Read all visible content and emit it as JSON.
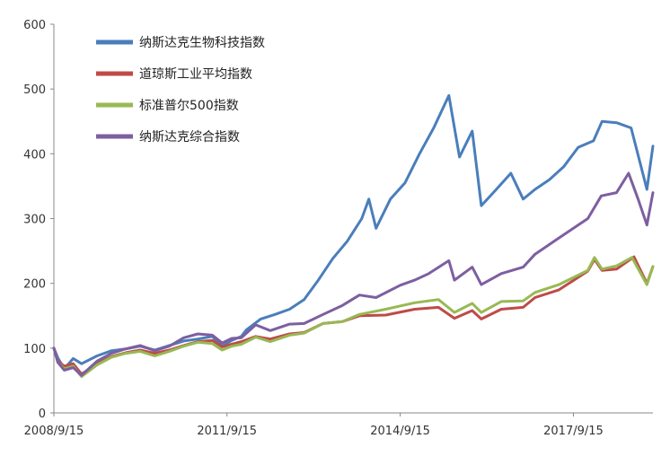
{
  "chart_data": {
    "type": "line",
    "title": "",
    "xlabel": "",
    "ylabel": "",
    "ylim": [
      0,
      600
    ],
    "yticks": [
      0,
      100,
      200,
      300,
      400,
      500,
      600
    ],
    "xlim": [
      "2008-09-15",
      "2019-01-31"
    ],
    "xtick_labels": [
      "2008/9/15",
      "2011/9/15",
      "2014/9/15",
      "2017/9/15"
    ],
    "grid": false,
    "legend_position": "top-left",
    "series": [
      {
        "name": "纳斯达克生物科技指数",
        "color": "#4a7ebb",
        "points": [
          [
            "2008-09-15",
            100
          ],
          [
            "2008-10-10",
            85
          ],
          [
            "2008-11-20",
            68
          ],
          [
            "2009-01-15",
            84
          ],
          [
            "2009-03-09",
            76
          ],
          [
            "2009-06-15",
            88
          ],
          [
            "2009-09-15",
            96
          ],
          [
            "2009-12-15",
            99
          ],
          [
            "2010-03-15",
            103
          ],
          [
            "2010-06-15",
            97
          ],
          [
            "2010-09-15",
            104
          ],
          [
            "2010-12-15",
            111
          ],
          [
            "2011-03-15",
            114
          ],
          [
            "2011-06-15",
            118
          ],
          [
            "2011-08-15",
            103
          ],
          [
            "2011-10-15",
            112
          ],
          [
            "2011-12-15",
            118
          ],
          [
            "2012-01-15",
            128
          ],
          [
            "2012-04-15",
            145
          ],
          [
            "2012-07-15",
            152
          ],
          [
            "2012-10-15",
            160
          ],
          [
            "2013-01-15",
            175
          ],
          [
            "2013-04-15",
            205
          ],
          [
            "2013-07-15",
            238
          ],
          [
            "2013-10-15",
            265
          ],
          [
            "2014-01-15",
            300
          ],
          [
            "2014-03-01",
            330
          ],
          [
            "2014-04-15",
            285
          ],
          [
            "2014-07-15",
            330
          ],
          [
            "2014-10-15",
            355
          ],
          [
            "2015-01-15",
            400
          ],
          [
            "2015-04-15",
            440
          ],
          [
            "2015-07-20",
            490
          ],
          [
            "2015-09-25",
            395
          ],
          [
            "2015-12-15",
            435
          ],
          [
            "2016-02-10",
            320
          ],
          [
            "2016-05-15",
            345
          ],
          [
            "2016-08-15",
            370
          ],
          [
            "2016-11-01",
            330
          ],
          [
            "2017-01-15",
            345
          ],
          [
            "2017-04-15",
            360
          ],
          [
            "2017-07-15",
            380
          ],
          [
            "2017-10-15",
            410
          ],
          [
            "2018-01-20",
            420
          ],
          [
            "2018-03-15",
            450
          ],
          [
            "2018-06-15",
            448
          ],
          [
            "2018-09-15",
            440
          ],
          [
            "2018-12-24",
            345
          ],
          [
            "2019-01-31",
            412
          ]
        ]
      },
      {
        "name": "道琼斯工业平均指数",
        "color": "#be4b48",
        "points": [
          [
            "2008-09-15",
            100
          ],
          [
            "2008-10-10",
            80
          ],
          [
            "2008-11-20",
            72
          ],
          [
            "2009-01-15",
            76
          ],
          [
            "2009-03-09",
            60
          ],
          [
            "2009-06-15",
            76
          ],
          [
            "2009-09-15",
            87
          ],
          [
            "2009-12-15",
            93
          ],
          [
            "2010-03-15",
            97
          ],
          [
            "2010-06-15",
            92
          ],
          [
            "2010-09-15",
            97
          ],
          [
            "2010-12-15",
            104
          ],
          [
            "2011-03-15",
            110
          ],
          [
            "2011-06-15",
            112
          ],
          [
            "2011-08-15",
            102
          ],
          [
            "2011-10-15",
            106
          ],
          [
            "2011-12-15",
            110
          ],
          [
            "2012-03-15",
            118
          ],
          [
            "2012-06-15",
            114
          ],
          [
            "2012-10-15",
            122
          ],
          [
            "2013-01-15",
            124
          ],
          [
            "2013-05-15",
            138
          ],
          [
            "2013-09-15",
            141
          ],
          [
            "2013-12-31",
            150
          ],
          [
            "2014-06-15",
            151
          ],
          [
            "2014-12-15",
            160
          ],
          [
            "2015-05-15",
            163
          ],
          [
            "2015-08-24",
            146
          ],
          [
            "2015-12-15",
            158
          ],
          [
            "2016-02-10",
            145
          ],
          [
            "2016-06-15",
            160
          ],
          [
            "2016-11-01",
            163
          ],
          [
            "2017-01-15",
            178
          ],
          [
            "2017-06-15",
            190
          ],
          [
            "2017-12-15",
            219
          ],
          [
            "2018-01-26",
            237
          ],
          [
            "2018-03-15",
            220
          ],
          [
            "2018-06-15",
            222
          ],
          [
            "2018-10-03",
            241
          ],
          [
            "2018-12-24",
            200
          ],
          [
            "2019-01-31",
            226
          ]
        ]
      },
      {
        "name": "标准普尔500指数",
        "color": "#98b954",
        "points": [
          [
            "2008-09-15",
            100
          ],
          [
            "2008-10-10",
            78
          ],
          [
            "2008-11-20",
            68
          ],
          [
            "2009-01-15",
            72
          ],
          [
            "2009-03-09",
            56
          ],
          [
            "2009-06-15",
            74
          ],
          [
            "2009-09-15",
            86
          ],
          [
            "2009-12-15",
            92
          ],
          [
            "2010-03-15",
            95
          ],
          [
            "2010-06-15",
            88
          ],
          [
            "2010-09-15",
            95
          ],
          [
            "2010-12-15",
            103
          ],
          [
            "2011-03-15",
            109
          ],
          [
            "2011-06-15",
            107
          ],
          [
            "2011-08-15",
            97
          ],
          [
            "2011-10-15",
            103
          ],
          [
            "2011-12-15",
            106
          ],
          [
            "2012-03-15",
            117
          ],
          [
            "2012-06-15",
            110
          ],
          [
            "2012-10-15",
            120
          ],
          [
            "2013-01-15",
            123
          ],
          [
            "2013-05-15",
            138
          ],
          [
            "2013-09-15",
            141
          ],
          [
            "2013-12-31",
            152
          ],
          [
            "2014-06-15",
            160
          ],
          [
            "2014-12-15",
            170
          ],
          [
            "2015-05-15",
            175
          ],
          [
            "2015-08-24",
            155
          ],
          [
            "2015-12-15",
            169
          ],
          [
            "2016-02-10",
            155
          ],
          [
            "2016-06-15",
            172
          ],
          [
            "2016-11-01",
            173
          ],
          [
            "2017-01-15",
            186
          ],
          [
            "2017-06-15",
            198
          ],
          [
            "2017-12-15",
            220
          ],
          [
            "2018-01-26",
            240
          ],
          [
            "2018-03-15",
            222
          ],
          [
            "2018-06-15",
            227
          ],
          [
            "2018-09-20",
            240
          ],
          [
            "2018-12-24",
            198
          ],
          [
            "2019-01-31",
            226
          ]
        ]
      },
      {
        "name": "纳斯达克综合指数",
        "color": "#7d5fa0",
        "points": [
          [
            "2008-09-15",
            100
          ],
          [
            "2008-10-10",
            78
          ],
          [
            "2008-11-20",
            66
          ],
          [
            "2009-01-15",
            70
          ],
          [
            "2009-03-09",
            58
          ],
          [
            "2009-06-15",
            80
          ],
          [
            "2009-09-15",
            92
          ],
          [
            "2009-12-15",
            99
          ],
          [
            "2010-03-15",
            104
          ],
          [
            "2010-06-15",
            96
          ],
          [
            "2010-09-15",
            103
          ],
          [
            "2010-12-15",
            116
          ],
          [
            "2011-03-15",
            122
          ],
          [
            "2011-06-15",
            120
          ],
          [
            "2011-08-15",
            108
          ],
          [
            "2011-10-15",
            115
          ],
          [
            "2011-12-15",
            116
          ],
          [
            "2012-03-15",
            136
          ],
          [
            "2012-06-15",
            127
          ],
          [
            "2012-10-15",
            137
          ],
          [
            "2013-01-15",
            138
          ],
          [
            "2013-05-15",
            152
          ],
          [
            "2013-09-15",
            166
          ],
          [
            "2013-12-31",
            182
          ],
          [
            "2014-04-15",
            178
          ],
          [
            "2014-09-15",
            197
          ],
          [
            "2014-12-15",
            205
          ],
          [
            "2015-03-15",
            215
          ],
          [
            "2015-07-20",
            235
          ],
          [
            "2015-08-24",
            205
          ],
          [
            "2015-12-15",
            225
          ],
          [
            "2016-02-10",
            198
          ],
          [
            "2016-06-15",
            215
          ],
          [
            "2016-11-01",
            225
          ],
          [
            "2017-01-15",
            245
          ],
          [
            "2017-06-15",
            270
          ],
          [
            "2017-12-15",
            300
          ],
          [
            "2018-03-10",
            335
          ],
          [
            "2018-06-15",
            340
          ],
          [
            "2018-08-30",
            370
          ],
          [
            "2018-10-29",
            330
          ],
          [
            "2018-12-24",
            290
          ],
          [
            "2019-01-31",
            340
          ]
        ]
      }
    ]
  }
}
